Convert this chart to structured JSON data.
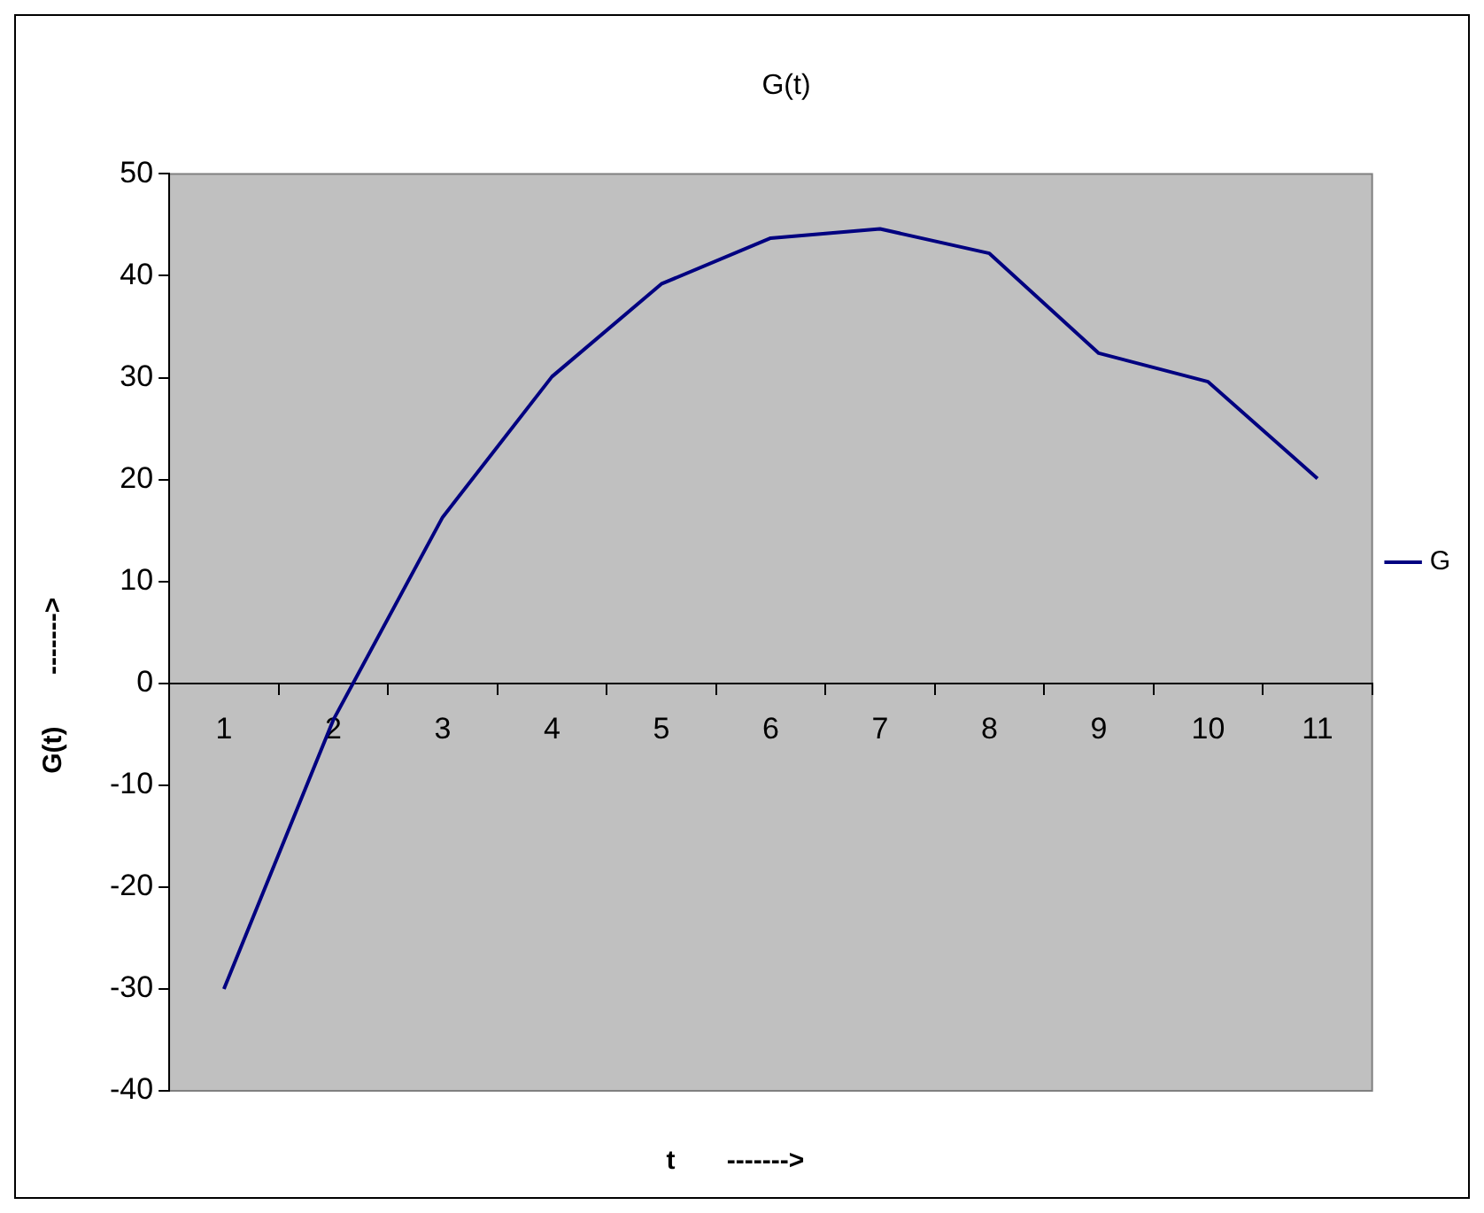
{
  "chart_data": {
    "type": "line",
    "title": "G(t)",
    "xlabel": "t       ------->",
    "ylabel": "G(t)       ------->",
    "categories": [
      "1",
      "2",
      "3",
      "4",
      "5",
      "6",
      "7",
      "8",
      "9",
      "10",
      "11"
    ],
    "series": [
      {
        "name": "G",
        "color": "#000080",
        "values": [
          -30,
          -3.6,
          16.3,
          30.1,
          39.2,
          43.7,
          44.6,
          42.2,
          32.4,
          29.6,
          20.1
        ]
      }
    ],
    "ylim": [
      -40,
      50
    ],
    "yticks": [
      -40,
      -30,
      -20,
      -10,
      0,
      10,
      20,
      30,
      40,
      50
    ],
    "grid": false,
    "legend": "right",
    "marker": "none",
    "line_style": "solid"
  }
}
